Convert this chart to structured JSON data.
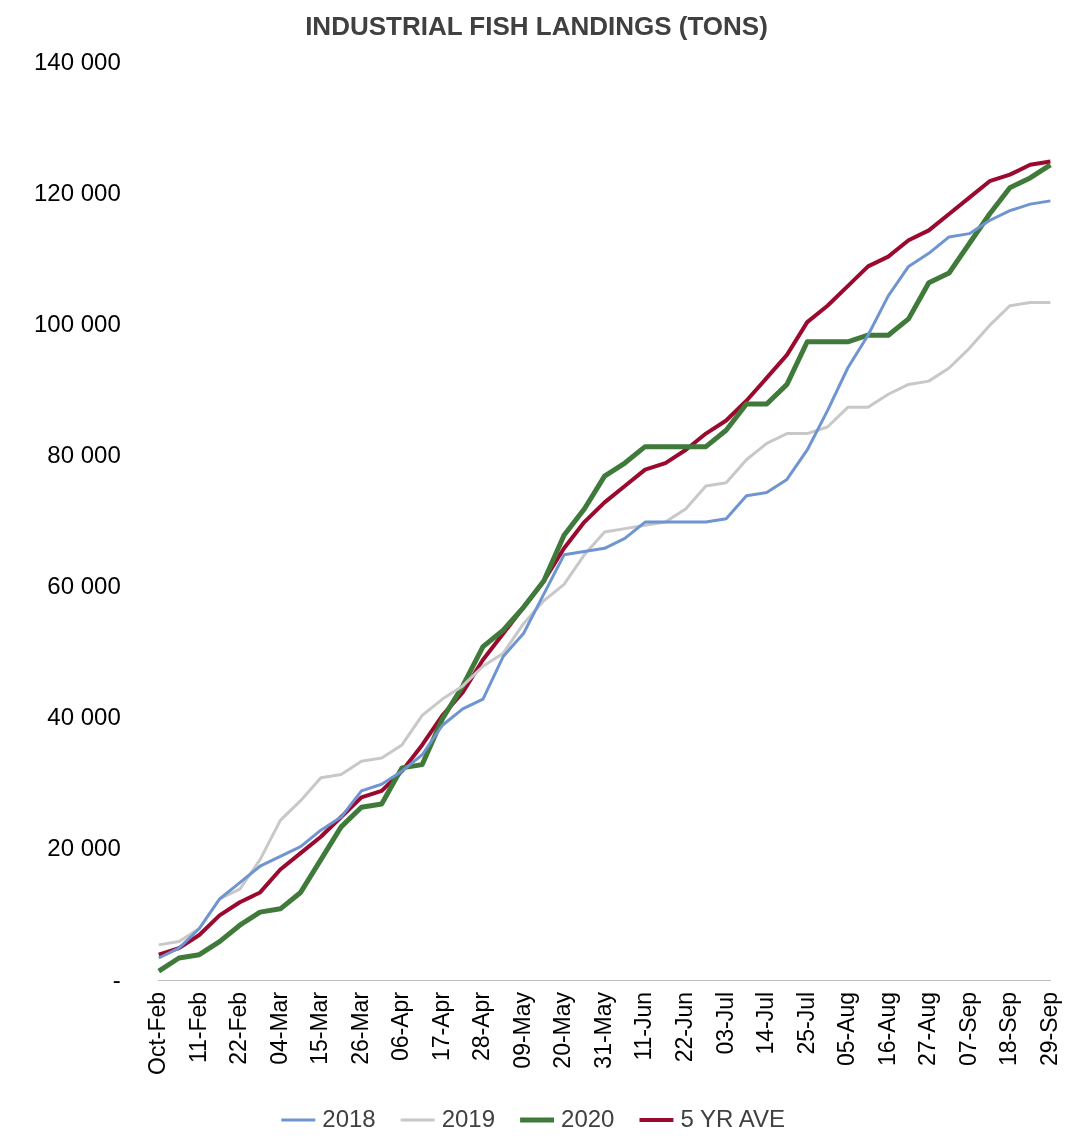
{
  "chart_data": {
    "type": "line",
    "title": "INDUSTRIAL FISH LANDINGS (TONS)",
    "categories": [
      "Oct-Feb",
      null,
      "11-Feb",
      null,
      "22-Feb",
      null,
      "04-Mar",
      null,
      "15-Mar",
      null,
      "26-Mar",
      null,
      "06-Apr",
      null,
      "17-Apr",
      null,
      "28-Apr",
      null,
      "09-May",
      null,
      "20-May",
      null,
      "31-May",
      null,
      "11-Jun",
      null,
      "22-Jun",
      null,
      "03-Jul",
      null,
      "14-Jul",
      null,
      "25-Jul",
      null,
      "05-Aug",
      null,
      "16-Aug",
      null,
      "27-Aug",
      null,
      "07-Sep",
      null,
      "18-Sep",
      null,
      "29-Sep"
    ],
    "series": [
      {
        "name": "2018",
        "color": "#6f95d1",
        "values": [
          3500,
          5000,
          8000,
          12500,
          15000,
          17500,
          19000,
          20500,
          23000,
          25000,
          29000,
          30000,
          32000,
          34500,
          39000,
          41500,
          43000,
          49500,
          53000,
          59000,
          65000,
          65500,
          66000,
          67500,
          70000,
          70000,
          70000,
          70000,
          70500,
          74000,
          74500,
          76500,
          81000,
          87000,
          93500,
          98500,
          104500,
          109000,
          111000,
          113500,
          114000,
          116000,
          117500,
          118500,
          119000
        ]
      },
      {
        "name": "2019",
        "color": "#c8c8c8",
        "values": [
          5500,
          6000,
          8000,
          12500,
          14000,
          18500,
          24500,
          27500,
          31000,
          31500,
          33500,
          34000,
          36000,
          40500,
          43000,
          45000,
          48000,
          50000,
          54500,
          58000,
          60500,
          65000,
          68500,
          69000,
          69500,
          70000,
          72000,
          75500,
          76000,
          79500,
          82000,
          83500,
          83500,
          84500,
          87500,
          87500,
          89500,
          91000,
          91500,
          93500,
          96500,
          100000,
          103000,
          103500,
          103500
        ]
      },
      {
        "name": "2020",
        "color": "#3f7a3a",
        "values": [
          1500,
          3500,
          4000,
          6000,
          8500,
          10500,
          11000,
          13500,
          18500,
          23500,
          26500,
          27000,
          32500,
          33000,
          40000,
          45000,
          51000,
          53500,
          57000,
          61000,
          68000,
          72000,
          77000,
          79000,
          81500,
          81500,
          81500,
          81500,
          84000,
          88000,
          88000,
          91000,
          97500,
          97500,
          97500,
          98500,
          98500,
          101000,
          106500,
          108000,
          112500,
          117000,
          121000,
          122500,
          124500
        ]
      },
      {
        "name": "5 YR AVE",
        "color": "#9b0a2e",
        "values": [
          4000,
          5000,
          7000,
          10000,
          12000,
          13500,
          17000,
          19500,
          22000,
          25000,
          28000,
          29000,
          32000,
          36000,
          40500,
          44000,
          49000,
          53000,
          57000,
          61000,
          66000,
          70000,
          73000,
          75500,
          78000,
          79000,
          81000,
          83500,
          85500,
          88500,
          92000,
          95500,
          100500,
          103000,
          106000,
          109000,
          110500,
          113000,
          114500,
          117000,
          119500,
          122000,
          123000,
          124500,
          125000
        ]
      }
    ],
    "ylim": [
      0,
      140000
    ],
    "yticks": [
      {
        "value": 0,
        "label": "-"
      },
      {
        "value": 20000,
        "label": "20 000"
      },
      {
        "value": 40000,
        "label": "40 000"
      },
      {
        "value": 60000,
        "label": "60 000"
      },
      {
        "value": 80000,
        "label": "80 000"
      },
      {
        "value": 100000,
        "label": "100 000"
      },
      {
        "value": 120000,
        "label": "120 000"
      },
      {
        "value": 140000,
        "label": "140 000"
      }
    ],
    "legend": "bottom",
    "marker": "none",
    "line_style": "solid"
  }
}
